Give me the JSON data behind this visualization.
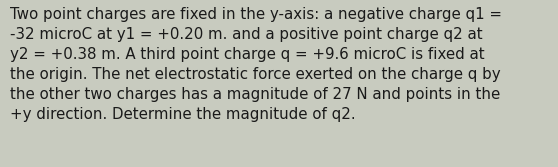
{
  "text": "Two point charges are fixed in the y-axis: a negative charge q1 =\n-32 microC at y1 = +0.20 m. and a positive point charge q2 at\ny2 = +0.38 m. A third point charge q = +9.6 microC is fixed at\nthe origin. The net electrostatic force exerted on the charge q by\nthe other two charges has a magnitude of 27 N and points in the\n+y direction. Determine the magnitude of q2.",
  "background_color": "#c8cbbf",
  "text_color": "#1a1a1a",
  "font_size": 10.8,
  "fig_width": 5.58,
  "fig_height": 1.67
}
